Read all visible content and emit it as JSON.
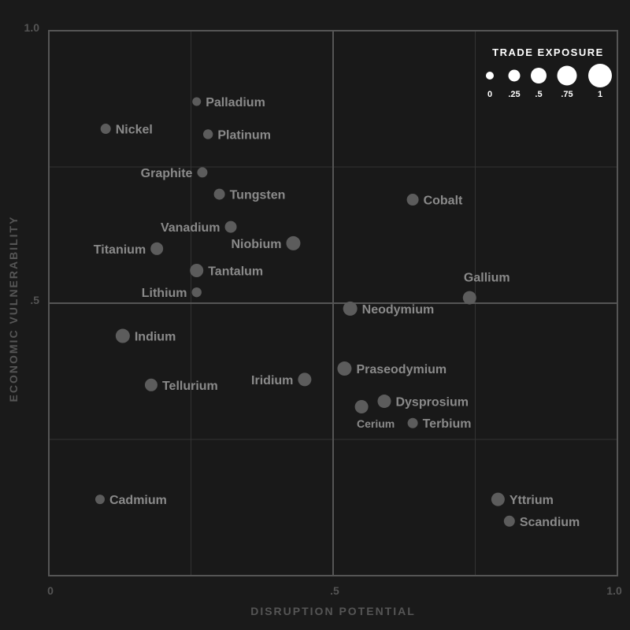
{
  "chart_data": {
    "type": "scatter",
    "xlabel": "DISRUPTION POTENTIAL",
    "ylabel": "ECONOMIC VULNERABILITY",
    "xlim": [
      0,
      1
    ],
    "ylim": [
      0,
      1
    ],
    "x_ticks": [
      {
        "value": 0,
        "label": "0"
      },
      {
        "value": 0.5,
        "label": ".5"
      },
      {
        "value": 1,
        "label": "1.0"
      }
    ],
    "y_ticks": [
      {
        "value": 0.5,
        "label": ".5"
      },
      {
        "value": 1,
        "label": "1.0"
      }
    ],
    "legend": {
      "title": "TRADE EXPOSURE",
      "placement": "top-right",
      "items": [
        {
          "value": 0,
          "label": "0"
        },
        {
          "value": 0.25,
          "label": ".25"
        },
        {
          "value": 0.5,
          "label": ".5"
        },
        {
          "value": 0.75,
          "label": ".75"
        },
        {
          "value": 1,
          "label": "1"
        }
      ]
    },
    "points": [
      {
        "name": "Palladium",
        "x": 0.26,
        "y": 0.87,
        "size": 0.05,
        "label_side": "right"
      },
      {
        "name": "Nickel",
        "x": 0.1,
        "y": 0.82,
        "size": 0.15,
        "label_side": "right"
      },
      {
        "name": "Platinum",
        "x": 0.28,
        "y": 0.81,
        "size": 0.12,
        "label_side": "right"
      },
      {
        "name": "Graphite",
        "x": 0.27,
        "y": 0.74,
        "size": 0.15,
        "label_side": "left"
      },
      {
        "name": "Tungsten",
        "x": 0.3,
        "y": 0.7,
        "size": 0.2,
        "label_side": "right"
      },
      {
        "name": "Cobalt",
        "x": 0.64,
        "y": 0.69,
        "size": 0.25,
        "label_side": "right"
      },
      {
        "name": "Vanadium",
        "x": 0.32,
        "y": 0.64,
        "size": 0.25,
        "label_side": "left"
      },
      {
        "name": "Niobium",
        "x": 0.43,
        "y": 0.61,
        "size": 0.4,
        "label_side": "left"
      },
      {
        "name": "Titanium",
        "x": 0.19,
        "y": 0.6,
        "size": 0.3,
        "label_side": "left"
      },
      {
        "name": "Tantalum",
        "x": 0.26,
        "y": 0.56,
        "size": 0.35,
        "label_side": "right"
      },
      {
        "name": "Lithium",
        "x": 0.26,
        "y": 0.52,
        "size": 0.12,
        "label_side": "left"
      },
      {
        "name": "Gallium",
        "x": 0.74,
        "y": 0.51,
        "size": 0.35,
        "label_side": "above"
      },
      {
        "name": "Neodymium",
        "x": 0.53,
        "y": 0.49,
        "size": 0.4,
        "label_side": "right"
      },
      {
        "name": "Indium",
        "x": 0.13,
        "y": 0.44,
        "size": 0.4,
        "label_side": "right"
      },
      {
        "name": "Praseodymium",
        "x": 0.52,
        "y": 0.38,
        "size": 0.4,
        "label_side": "right"
      },
      {
        "name": "Iridium",
        "x": 0.45,
        "y": 0.36,
        "size": 0.35,
        "label_side": "left"
      },
      {
        "name": "Tellurium",
        "x": 0.18,
        "y": 0.35,
        "size": 0.3,
        "label_side": "right"
      },
      {
        "name": "Dysprosium",
        "x": 0.59,
        "y": 0.32,
        "size": 0.35,
        "label_side": "right"
      },
      {
        "name": "Cerium",
        "x": 0.55,
        "y": 0.31,
        "size": 0.35,
        "label_side": "below"
      },
      {
        "name": "Terbium",
        "x": 0.64,
        "y": 0.28,
        "size": 0.15,
        "label_side": "right"
      },
      {
        "name": "Cadmium",
        "x": 0.09,
        "y": 0.14,
        "size": 0.1,
        "label_side": "right"
      },
      {
        "name": "Yttrium",
        "x": 0.79,
        "y": 0.14,
        "size": 0.35,
        "label_side": "right"
      },
      {
        "name": "Scandium",
        "x": 0.81,
        "y": 0.1,
        "size": 0.2,
        "label_side": "right"
      }
    ]
  }
}
